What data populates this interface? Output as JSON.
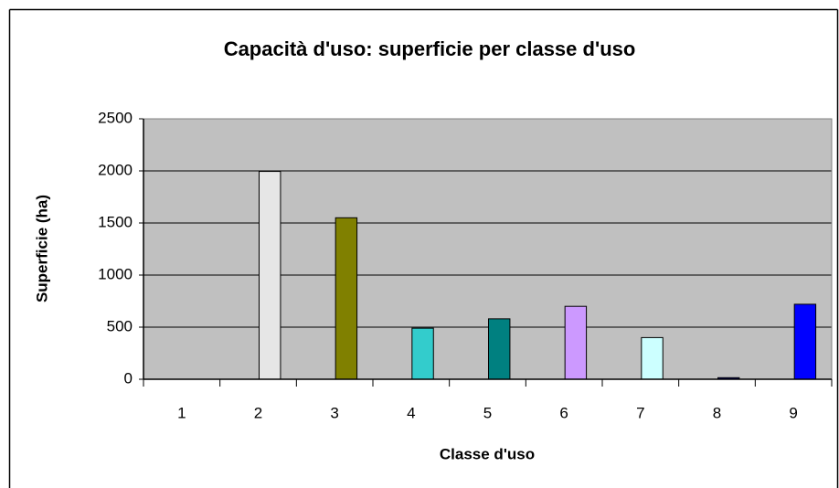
{
  "chart_data": {
    "type": "bar",
    "title": "Capacità d'uso: superficie per classe d'uso",
    "x_label": "Classe d'uso",
    "y_label": "Superficie (ha)",
    "categories": [
      "1",
      "2",
      "3",
      "4",
      "5",
      "6",
      "7",
      "8",
      "9"
    ],
    "values": [
      0,
      1995,
      1550,
      490,
      580,
      700,
      400,
      15,
      720
    ],
    "colors": [
      "#993366",
      "#e6e6e6",
      "#808000",
      "#33cccc",
      "#008080",
      "#cc99ff",
      "#ccffff",
      "#000080",
      "#0000ff"
    ],
    "ylim": [
      0,
      2500
    ],
    "yticks": [
      0,
      500,
      1000,
      1500,
      2000,
      2500
    ],
    "grid": true
  }
}
